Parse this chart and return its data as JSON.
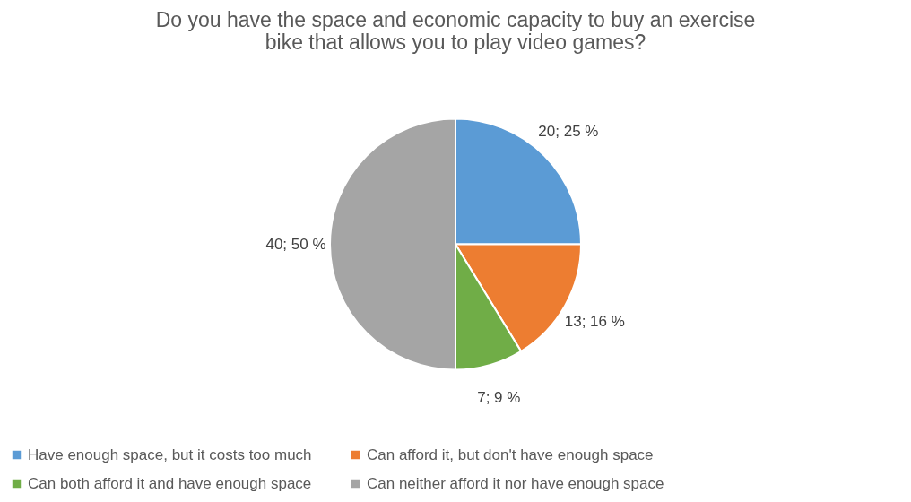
{
  "chart_data": {
    "type": "pie",
    "title": "Do you have the space and economic capacity to buy an exercise\nbike that allows you to play video games?",
    "categories": [
      "Have enough space, but it costs too much",
      "Can afford it, but don't have enough space",
      "Can both afford it and have enough space",
      "Can neither afford it nor have enough space"
    ],
    "values": [
      20,
      13,
      7,
      40
    ],
    "value_labels": [
      "20; 25 %",
      "13; 16 %",
      "7; 9 %",
      "40; 50 %"
    ],
    "colors": [
      "#5b9bd5",
      "#ed7d31",
      "#70ad47",
      "#a5a5a5"
    ],
    "legend": "bottom"
  }
}
